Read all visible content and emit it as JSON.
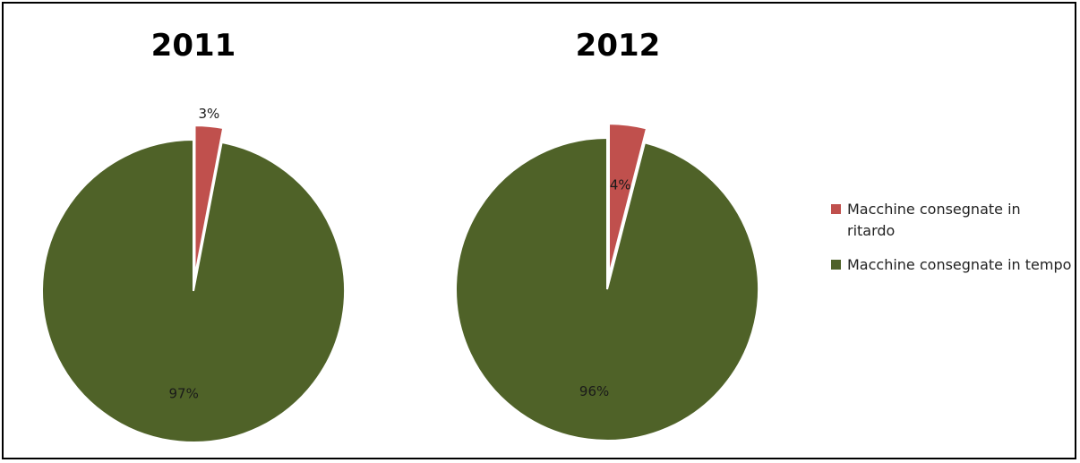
{
  "chart_data": [
    {
      "type": "pie",
      "title": "2011",
      "slices": [
        {
          "label": "Macchine consegnate in ritardo",
          "value": 3,
          "value_label": "3%",
          "color": "#c0504d",
          "exploded": true
        },
        {
          "label": "Macchine consegnate in tempo",
          "value": 97,
          "value_label": "97%",
          "color": "#4f6228",
          "exploded": false
        }
      ]
    },
    {
      "type": "pie",
      "title": "2012",
      "slices": [
        {
          "label": "Macchine consegnate in ritardo",
          "value": 4,
          "value_label": "4%",
          "color": "#c0504d",
          "exploded": true
        },
        {
          "label": "Macchine consegnate in tempo",
          "value": 96,
          "value_label": "96%",
          "color": "#4f6228",
          "exploded": false
        }
      ]
    }
  ],
  "legend": {
    "position": "right",
    "items": [
      {
        "label": "Macchine consegnate in ritardo",
        "color": "#c0504d"
      },
      {
        "label": "Macchine consegnate in tempo",
        "color": "#4f6228"
      }
    ]
  }
}
